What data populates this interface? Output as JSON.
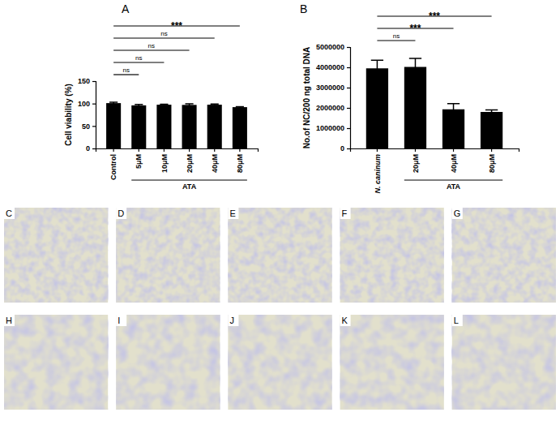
{
  "chart_data": [
    {
      "type": "bar",
      "panel": "A",
      "ylabel": "Cell viability (%)",
      "categories": [
        "Control",
        "5μM",
        "10μM",
        "20μM",
        "40μM",
        "80μM"
      ],
      "values": [
        101,
        96,
        97.5,
        97,
        97.5,
        92
      ],
      "errors": [
        2,
        2,
        1,
        2.5,
        1.5,
        1
      ],
      "color": "#000000",
      "ylim": [
        0,
        150
      ],
      "yticks": [
        0,
        50,
        100,
        150
      ],
      "x_group": {
        "label": "ATA",
        "from": "5μM",
        "to": "80μM"
      },
      "annotations": [
        {
          "text": "ns",
          "from": "Control",
          "to": "5μM"
        },
        {
          "text": "ns",
          "from": "Control",
          "to": "10μM"
        },
        {
          "text": "ns",
          "from": "Control",
          "to": "20μM"
        },
        {
          "text": "ns",
          "from": "Control",
          "to": "40μM"
        },
        {
          "text": "***",
          "from": "Control",
          "to": "80μM"
        }
      ]
    },
    {
      "type": "bar",
      "panel": "B",
      "ylabel": "No.of NC/200 ng total DNA",
      "categories": [
        "N. caninum",
        "20μM",
        "40μM",
        "80μM"
      ],
      "values": [
        3950000,
        4020000,
        1930000,
        1800000
      ],
      "errors": [
        400000,
        420000,
        280000,
        100000
      ],
      "color": "#000000",
      "ylim": [
        0,
        5000000
      ],
      "yticks": [
        0,
        1000000,
        2000000,
        3000000,
        4000000,
        5000000
      ],
      "x_group": {
        "label": "ATA",
        "from": "20μM",
        "to": "80μM"
      },
      "annotations": [
        {
          "text": "ns",
          "from": "N. caninum",
          "to": "20μM"
        },
        {
          "text": "***",
          "from": "N. caninum",
          "to": "40μM"
        },
        {
          "text": "***",
          "from": "N. caninum",
          "to": "80μM"
        }
      ]
    }
  ],
  "image_panels": [
    "C",
    "D",
    "E",
    "F",
    "G",
    "H",
    "I",
    "J",
    "K",
    "L"
  ]
}
